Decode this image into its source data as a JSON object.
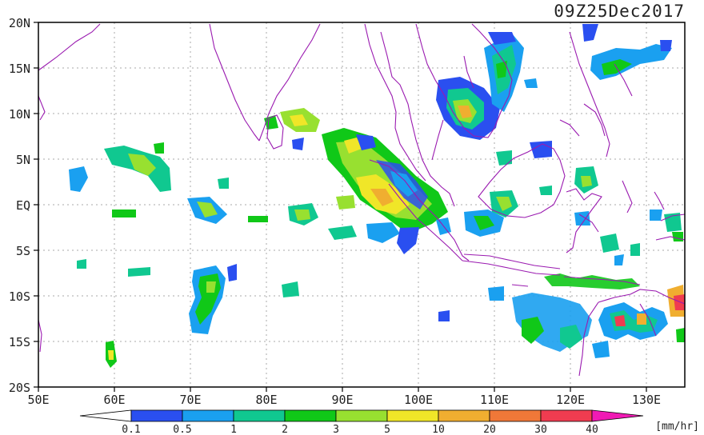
{
  "title": "09Z25Dec2017",
  "lat_labels": [
    "20N",
    "15N",
    "10N",
    "5N",
    "EQ",
    "5S",
    "10S",
    "15S",
    "20S"
  ],
  "lon_labels": [
    "50E",
    "60E",
    "70E",
    "80E",
    "90E",
    "100E",
    "110E",
    "120E",
    "130E"
  ],
  "map_extent": {
    "lon": [
      50,
      135
    ],
    "lat": [
      -20,
      20
    ]
  },
  "colorbar": {
    "unit": "[mm/hr]",
    "tick_labels": [
      "0.1",
      "0.5",
      "1",
      "2",
      "3",
      "5",
      "10",
      "20",
      "30",
      "40"
    ],
    "colors": [
      "#ffffff",
      "#2a4ff0",
      "#1aa0f0",
      "#10c890",
      "#10c818",
      "#98e030",
      "#f0e628",
      "#f0ae30",
      "#f07838",
      "#f03c50",
      "#f01ab4"
    ]
  },
  "colors": {
    "coastline": "#9a1ab0",
    "grid": "#aaaaaa",
    "frame": "#000000"
  }
}
